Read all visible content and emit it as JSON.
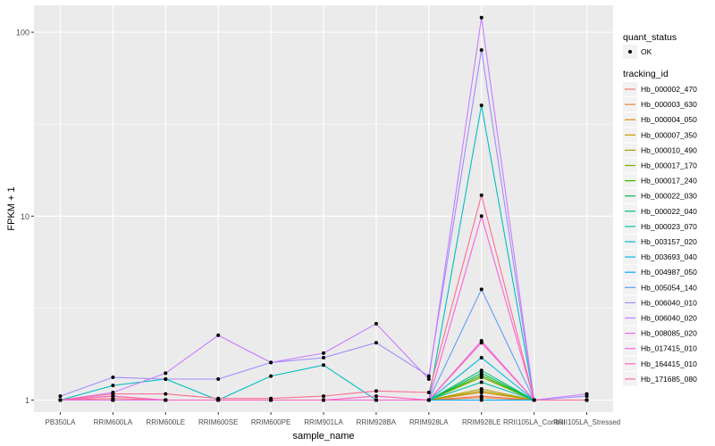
{
  "chart_data": {
    "type": "line",
    "xlabel": "sample_name",
    "ylabel": "FPKM + 1",
    "yscale": "log10",
    "ylim": [
      0.86,
      140
    ],
    "y_ticks": [
      {
        "value": 1,
        "label": "1"
      },
      {
        "value": 10,
        "label": "10"
      },
      {
        "value": 100,
        "label": "100"
      }
    ],
    "categories": [
      "PB350LA",
      "RRIM600LA",
      "RRIM600LE",
      "RRIM600SE",
      "RRIM600PE",
      "RRIM901LA",
      "RRIM928BA",
      "RRIM928LA",
      "RRIM928LE",
      "RRII105LA_Control",
      "RRII105LA_Stressed"
    ],
    "grid": true,
    "background": "#EBEBEB",
    "legend": {
      "position": "right",
      "shape_title": "quant_status",
      "shape_entries": [
        "OK"
      ],
      "color_title": "tracking_id"
    },
    "series": [
      {
        "name": "Hb_000002_470",
        "color": "#F8766D",
        "values": [
          1.0,
          1.02,
          1.0,
          1.0,
          1.0,
          1.0,
          1.0,
          1.0,
          1.05,
          1.0,
          1.0
        ]
      },
      {
        "name": "Hb_000003_630",
        "color": "#EA8331",
        "values": [
          1.0,
          1.0,
          1.0,
          1.0,
          1.0,
          1.0,
          1.0,
          1.0,
          1.03,
          1.0,
          1.0
        ]
      },
      {
        "name": "Hb_000004_050",
        "color": "#D89000",
        "values": [
          1.0,
          1.0,
          1.0,
          1.0,
          1.0,
          1.0,
          1.0,
          1.0,
          1.1,
          1.0,
          1.0
        ]
      },
      {
        "name": "Hb_000007_350",
        "color": "#C09B00",
        "values": [
          1.0,
          1.0,
          1.0,
          1.0,
          1.0,
          1.0,
          1.0,
          1.0,
          1.15,
          1.0,
          1.0
        ]
      },
      {
        "name": "Hb_000010_490",
        "color": "#A3A500",
        "values": [
          1.0,
          1.0,
          1.0,
          1.0,
          1.0,
          1.0,
          1.0,
          1.0,
          1.12,
          1.0,
          1.0
        ]
      },
      {
        "name": "Hb_000017_170",
        "color": "#7CAE00",
        "values": [
          1.0,
          1.0,
          1.0,
          1.0,
          1.0,
          1.0,
          1.0,
          1.0,
          1.33,
          1.0,
          1.0
        ]
      },
      {
        "name": "Hb_000017_240",
        "color": "#39B600",
        "values": [
          1.0,
          1.0,
          1.0,
          1.0,
          1.0,
          1.0,
          1.0,
          1.0,
          1.36,
          1.0,
          1.0
        ]
      },
      {
        "name": "Hb_000022_030",
        "color": "#00BB4E",
        "values": [
          1.0,
          1.0,
          1.0,
          1.0,
          1.0,
          1.0,
          1.0,
          1.0,
          1.4,
          1.0,
          1.0
        ]
      },
      {
        "name": "Hb_000022_040",
        "color": "#00BF7D",
        "values": [
          1.0,
          1.0,
          1.0,
          1.0,
          1.0,
          1.0,
          1.0,
          1.0,
          1.45,
          1.0,
          1.0
        ]
      },
      {
        "name": "Hb_000023_070",
        "color": "#00C1A3",
        "values": [
          1.0,
          1.0,
          1.0,
          1.0,
          1.0,
          1.0,
          1.0,
          1.0,
          1.25,
          1.0,
          1.0
        ]
      },
      {
        "name": "Hb_003157_020",
        "color": "#00BFC4",
        "values": [
          1.0,
          1.2,
          1.3,
          1.0,
          1.35,
          1.55,
          1.0,
          1.0,
          40.0,
          1.0,
          1.0
        ]
      },
      {
        "name": "Hb_003693_040",
        "color": "#00B8E7",
        "values": [
          1.0,
          1.0,
          1.0,
          1.0,
          1.0,
          1.0,
          1.0,
          1.0,
          1.7,
          1.0,
          1.0
        ]
      },
      {
        "name": "Hb_004987_050",
        "color": "#00A9FF",
        "values": [
          1.0,
          1.0,
          1.0,
          1.0,
          1.0,
          1.0,
          1.0,
          1.0,
          1.0,
          1.0,
          1.0
        ]
      },
      {
        "name": "Hb_005054_140",
        "color": "#619CFF",
        "values": [
          1.0,
          1.0,
          1.0,
          1.0,
          1.0,
          1.0,
          1.0,
          1.0,
          4.0,
          1.0,
          1.0
        ]
      },
      {
        "name": "Hb_006040_010",
        "color": "#9F8CFF",
        "values": [
          1.05,
          1.33,
          1.3,
          1.3,
          1.6,
          1.7,
          2.05,
          1.35,
          80.0,
          1.0,
          1.05
        ]
      },
      {
        "name": "Hb_006040_020",
        "color": "#C77CFF",
        "values": [
          1.0,
          1.1,
          1.4,
          2.25,
          1.6,
          1.8,
          2.6,
          1.3,
          120.0,
          1.0,
          1.08
        ]
      },
      {
        "name": "Hb_008085_020",
        "color": "#E76BF3",
        "values": [
          1.0,
          1.0,
          1.0,
          1.0,
          1.0,
          1.0,
          1.0,
          1.0,
          2.1,
          1.0,
          1.0
        ]
      },
      {
        "name": "Hb_017415_010",
        "color": "#FA62DB",
        "values": [
          1.0,
          1.05,
          1.0,
          1.0,
          1.0,
          1.0,
          1.0,
          1.0,
          10.0,
          1.0,
          1.0
        ]
      },
      {
        "name": "Hb_164415_010",
        "color": "#FF62BC",
        "values": [
          1.0,
          1.05,
          1.0,
          1.0,
          1.0,
          1.0,
          1.05,
          1.0,
          2.05,
          1.0,
          1.0
        ]
      },
      {
        "name": "Hb_171685_080",
        "color": "#FF6C91",
        "values": [
          1.0,
          1.08,
          1.08,
          1.02,
          1.02,
          1.05,
          1.12,
          1.1,
          13.0,
          1.0,
          1.0
        ]
      }
    ]
  }
}
